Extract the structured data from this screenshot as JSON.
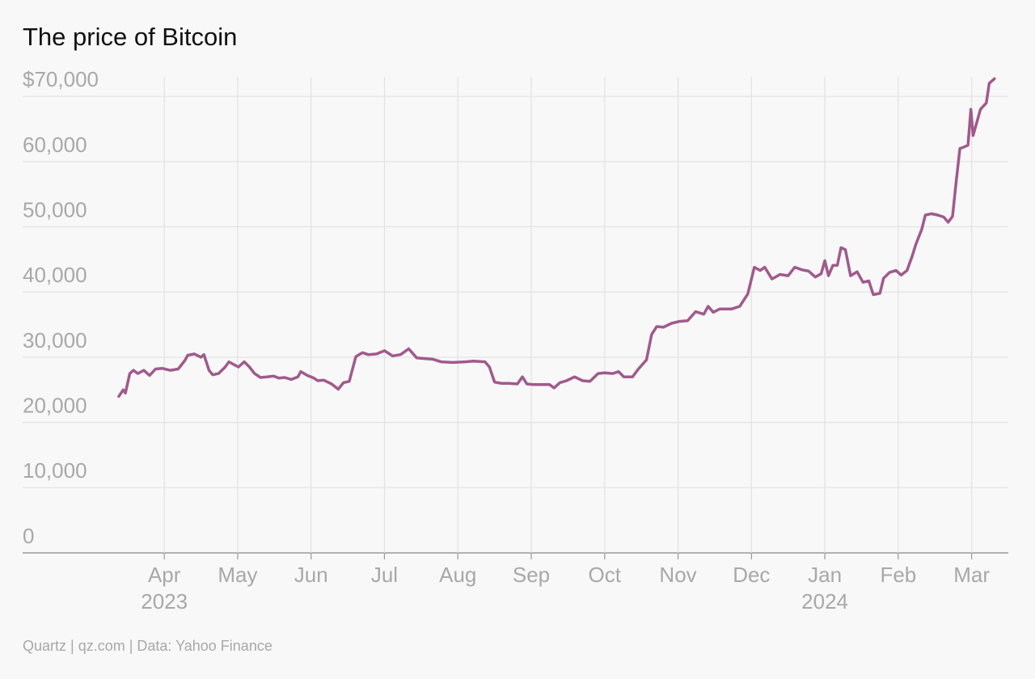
{
  "chart_data": {
    "type": "line",
    "title": "The price of Bitcoin",
    "source": "Quartz | qz.com | Data: Yahoo Finance",
    "color": "#a05a8c",
    "grid": true,
    "xlim": [
      2.07,
      15.5
    ],
    "ylim": [
      0,
      73000
    ],
    "xticks": [
      {
        "value": 4,
        "label": "Apr"
      },
      {
        "value": 5,
        "label": "May"
      },
      {
        "value": 6,
        "label": "Jun"
      },
      {
        "value": 7,
        "label": "Jul"
      },
      {
        "value": 8,
        "label": "Aug"
      },
      {
        "value": 9,
        "label": "Sep"
      },
      {
        "value": 10,
        "label": "Oct"
      },
      {
        "value": 11,
        "label": "Nov"
      },
      {
        "value": 12,
        "label": "Dec"
      },
      {
        "value": 13,
        "label": "Jan"
      },
      {
        "value": 14,
        "label": "Feb"
      },
      {
        "value": 15,
        "label": "Mar"
      }
    ],
    "x_year_labels": [
      {
        "value": 4,
        "label": "2023"
      },
      {
        "value": 13,
        "label": "2024"
      }
    ],
    "yticks": [
      0,
      {
        "value": 10000,
        "label": "10,000"
      },
      {
        "value": 20000,
        "label": "20,000"
      },
      {
        "value": 30000,
        "label": "30,000"
      },
      {
        "value": 40000,
        "label": "40,000"
      },
      {
        "value": 50000,
        "label": "50,000"
      },
      {
        "value": 60000,
        "label": "60,000"
      },
      {
        "value": 70000,
        "label": "$70,000"
      }
    ],
    "x": [
      3.38,
      3.44,
      3.47,
      3.53,
      3.58,
      3.64,
      3.72,
      3.8,
      3.88,
      3.97,
      4.08,
      4.19,
      4.28,
      4.32,
      4.41,
      4.5,
      4.54,
      4.61,
      4.66,
      4.74,
      4.83,
      4.88,
      4.96,
      5.01,
      5.09,
      5.16,
      5.23,
      5.31,
      5.4,
      5.49,
      5.56,
      5.64,
      5.73,
      5.82,
      5.86,
      5.95,
      6.04,
      6.09,
      6.17,
      6.28,
      6.37,
      6.44,
      6.52,
      6.61,
      6.7,
      6.78,
      6.89,
      7.0,
      7.11,
      7.22,
      7.33,
      7.44,
      7.55,
      7.66,
      7.77,
      7.93,
      8.1,
      8.21,
      8.37,
      8.43,
      8.5,
      8.59,
      8.7,
      8.81,
      8.88,
      8.94,
      9.03,
      9.14,
      9.25,
      9.31,
      9.39,
      9.48,
      9.59,
      9.7,
      9.8,
      9.91,
      10.0,
      10.11,
      10.19,
      10.26,
      10.38,
      10.46,
      10.57,
      10.64,
      10.71,
      10.8,
      10.91,
      11.02,
      11.13,
      11.24,
      11.35,
      11.41,
      11.48,
      11.57,
      11.64,
      11.73,
      11.84,
      11.95,
      12.04,
      12.12,
      12.18,
      12.28,
      12.39,
      12.5,
      12.59,
      12.69,
      12.78,
      12.87,
      12.95,
      13.0,
      13.05,
      13.11,
      13.17,
      13.22,
      13.28,
      13.35,
      13.44,
      13.52,
      13.6,
      13.66,
      13.75,
      13.8,
      13.88,
      13.97,
      14.04,
      14.12,
      14.19,
      14.24,
      14.32,
      14.37,
      14.45,
      14.54,
      14.62,
      14.68,
      14.74,
      14.79,
      14.84,
      14.89,
      14.95,
      14.99,
      15.02,
      15.07,
      15.12,
      15.2,
      15.24,
      15.31
    ],
    "values": [
      24000,
      25000,
      24500,
      27500,
      28000,
      27500,
      28000,
      27200,
      28200,
      28300,
      28000,
      28200,
      29500,
      30300,
      30500,
      30000,
      30400,
      28000,
      27300,
      27500,
      28500,
      29300,
      28800,
      28500,
      29300,
      28500,
      27500,
      26900,
      27000,
      27100,
      26800,
      26900,
      26600,
      27000,
      27800,
      27200,
      26800,
      26400,
      26500,
      25900,
      25100,
      26100,
      26300,
      30100,
      30700,
      30400,
      30500,
      31000,
      30200,
      30400,
      31300,
      29900,
      29800,
      29700,
      29300,
      29200,
      29300,
      29400,
      29300,
      28500,
      26200,
      26000,
      26000,
      25900,
      27000,
      25900,
      25800,
      25800,
      25800,
      25300,
      26100,
      26400,
      27000,
      26400,
      26300,
      27500,
      27600,
      27500,
      27800,
      27000,
      27000,
      28200,
      29600,
      33500,
      34700,
      34600,
      35200,
      35500,
      35600,
      37000,
      36600,
      37800,
      36900,
      37400,
      37400,
      37400,
      37800,
      39700,
      43800,
      43300,
      43800,
      42000,
      42700,
      42500,
      43800,
      43400,
      43200,
      42300,
      42800,
      44800,
      42500,
      44100,
      44100,
      46800,
      46500,
      42500,
      43100,
      41500,
      41700,
      39600,
      39800,
      42100,
      43000,
      43300,
      42600,
      43300,
      45500,
      47300,
      49600,
      51800,
      52000,
      51800,
      51500,
      50700,
      51600,
      57000,
      62000,
      62200,
      62500,
      68000,
      64000,
      66000,
      68000,
      69000,
      72000,
      72700
    ]
  }
}
